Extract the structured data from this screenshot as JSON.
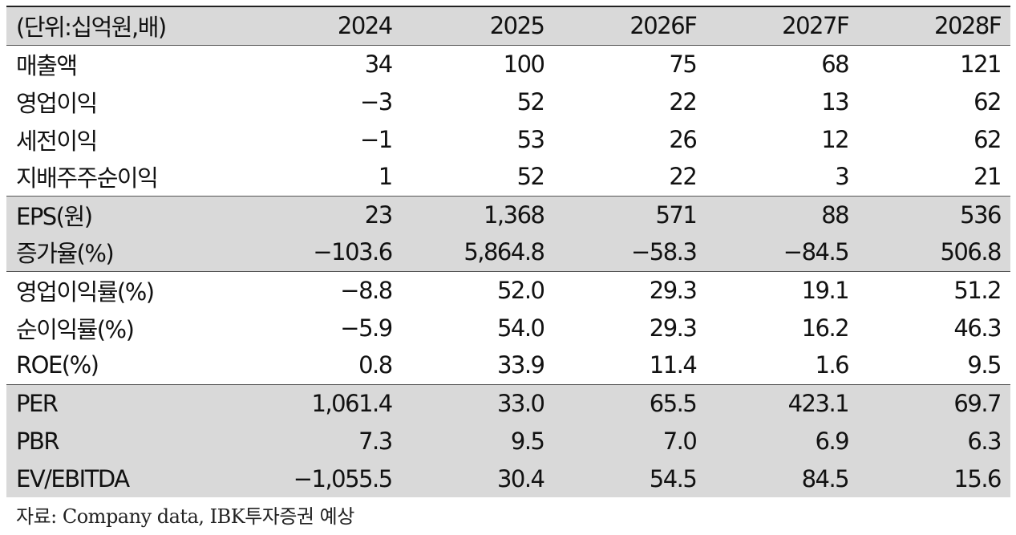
{
  "table": {
    "unit_label": "(단위:십억원,배)",
    "years": [
      "2024",
      "2025",
      "2026F",
      "2027F",
      "2028F"
    ],
    "groups": [
      {
        "shaded": false,
        "rows": [
          {
            "label": "매출액",
            "values": [
              "34",
              "100",
              "75",
              "68",
              "121"
            ]
          },
          {
            "label": "영업이익",
            "values": [
              "−3",
              "52",
              "22",
              "13",
              "62"
            ]
          },
          {
            "label": "세전이익",
            "values": [
              "−1",
              "53",
              "26",
              "12",
              "62"
            ]
          },
          {
            "label": "지배주주순이익",
            "values": [
              "1",
              "52",
              "22",
              "3",
              "21"
            ]
          }
        ]
      },
      {
        "shaded": true,
        "rows": [
          {
            "label": "EPS(원)",
            "values": [
              "23",
              "1,368",
              "571",
              "88",
              "536"
            ]
          },
          {
            "label": "증가율(%)",
            "values": [
              "−103.6",
              "5,864.8",
              "−58.3",
              "−84.5",
              "506.8"
            ]
          }
        ]
      },
      {
        "shaded": false,
        "rows": [
          {
            "label": "영업이익률(%)",
            "values": [
              "−8.8",
              "52.0",
              "29.3",
              "19.1",
              "51.2"
            ]
          },
          {
            "label": "순이익률(%)",
            "values": [
              "−5.9",
              "54.0",
              "29.3",
              "16.2",
              "46.3"
            ]
          },
          {
            "label": "ROE(%)",
            "values": [
              "0.8",
              "33.9",
              "11.4",
              "1.6",
              "9.5"
            ]
          }
        ]
      },
      {
        "shaded": true,
        "rows": [
          {
            "label": "PER",
            "values": [
              "1,061.4",
              "33.0",
              "65.5",
              "423.1",
              "69.7"
            ]
          },
          {
            "label": "PBR",
            "values": [
              "7.3",
              "9.5",
              "7.0",
              "6.9",
              "6.3"
            ]
          },
          {
            "label": "EV/EBITDA",
            "values": [
              "−1,055.5",
              "30.4",
              "54.5",
              "84.5",
              "15.6"
            ]
          }
        ]
      }
    ]
  },
  "source_note": "자료: Company data, IBK투자증권 예상"
}
